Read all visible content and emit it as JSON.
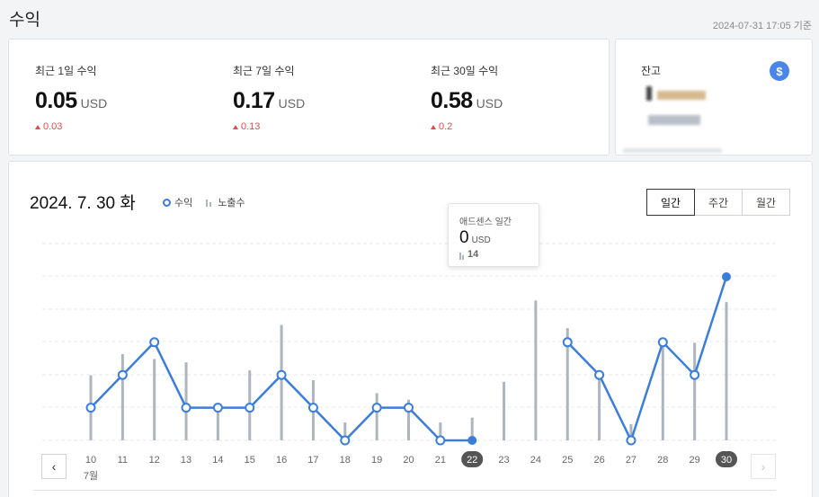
{
  "page": {
    "title": "수익",
    "timestamp": "2024-07-31 17:05 기준"
  },
  "summary": {
    "stats": [
      {
        "label": "최근 1일 수익",
        "value": "0.05",
        "unit": "USD",
        "change": "0.03"
      },
      {
        "label": "최근 7일 수익",
        "value": "0.17",
        "unit": "USD",
        "change": "0.13"
      },
      {
        "label": "최근 30일 수익",
        "value": "0.58",
        "unit": "USD",
        "change": "0.2"
      }
    ]
  },
  "balance": {
    "label": "잔고",
    "icon": "dollar-icon",
    "icon_glyph": "$"
  },
  "chart_header": {
    "date": "2024. 7. 30 화",
    "legend_revenue": "수익",
    "legend_impressions": "노출수",
    "tabs": [
      "일간",
      "주간",
      "월간"
    ],
    "active_tab": "일간"
  },
  "tooltip": {
    "title": "애드센스 일간",
    "value": "0",
    "unit": "USD",
    "impressions": "14"
  },
  "navigation": {
    "prev_icon": "chevron-left-icon",
    "next_icon": "chevron-right-icon"
  },
  "colors": {
    "line": "#3b7ddd",
    "bar": "#aeb5be",
    "change_up": "#e5484d",
    "highlight_badge": "#555555"
  },
  "chart_data": {
    "type": "line",
    "x": [
      "10",
      "11",
      "12",
      "13",
      "14",
      "15",
      "16",
      "17",
      "18",
      "19",
      "20",
      "21",
      "22",
      "23",
      "24",
      "25",
      "26",
      "27",
      "28",
      "29",
      "30"
    ],
    "month_label": "7월",
    "highlighted_x": [
      "22",
      "30"
    ],
    "series": [
      {
        "name": "수익",
        "type": "line",
        "values": [
          0.02,
          0.04,
          0.06,
          0.02,
          0.02,
          0.02,
          0.04,
          0.02,
          0.0,
          0.02,
          0.02,
          0.0,
          0.0,
          null,
          null,
          0.06,
          0.04,
          0.0,
          0.06,
          0.04,
          0.1
        ]
      },
      {
        "name": "노출수",
        "type": "bar",
        "values": [
          40,
          53,
          50,
          48,
          20,
          43,
          71,
          37,
          11,
          29,
          25,
          11,
          14,
          36,
          86,
          69,
          41,
          10,
          59,
          60,
          85
        ]
      }
    ],
    "grid": true
  }
}
